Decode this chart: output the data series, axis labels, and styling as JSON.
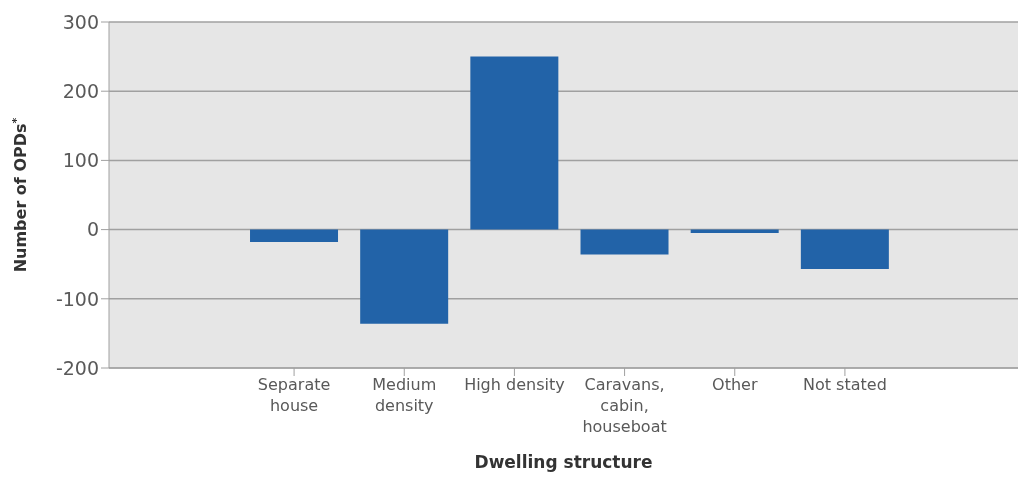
{
  "chart_data": {
    "type": "bar",
    "xlabel": "Dwelling structure",
    "ylabel": "Number of OPDs$^{*}$",
    "categories": [
      "Separate house",
      "Medium density",
      "High density",
      "Caravans, cabin, houseboat",
      "Other",
      "Not stated"
    ],
    "values": [
      -18,
      -136,
      250,
      -36,
      -5,
      -57
    ],
    "color": "#2263a8",
    "ylim": [
      -200,
      300
    ],
    "yticks": [
      -200,
      -100,
      0,
      100,
      200,
      300
    ],
    "grid": "y",
    "legend": false
  }
}
